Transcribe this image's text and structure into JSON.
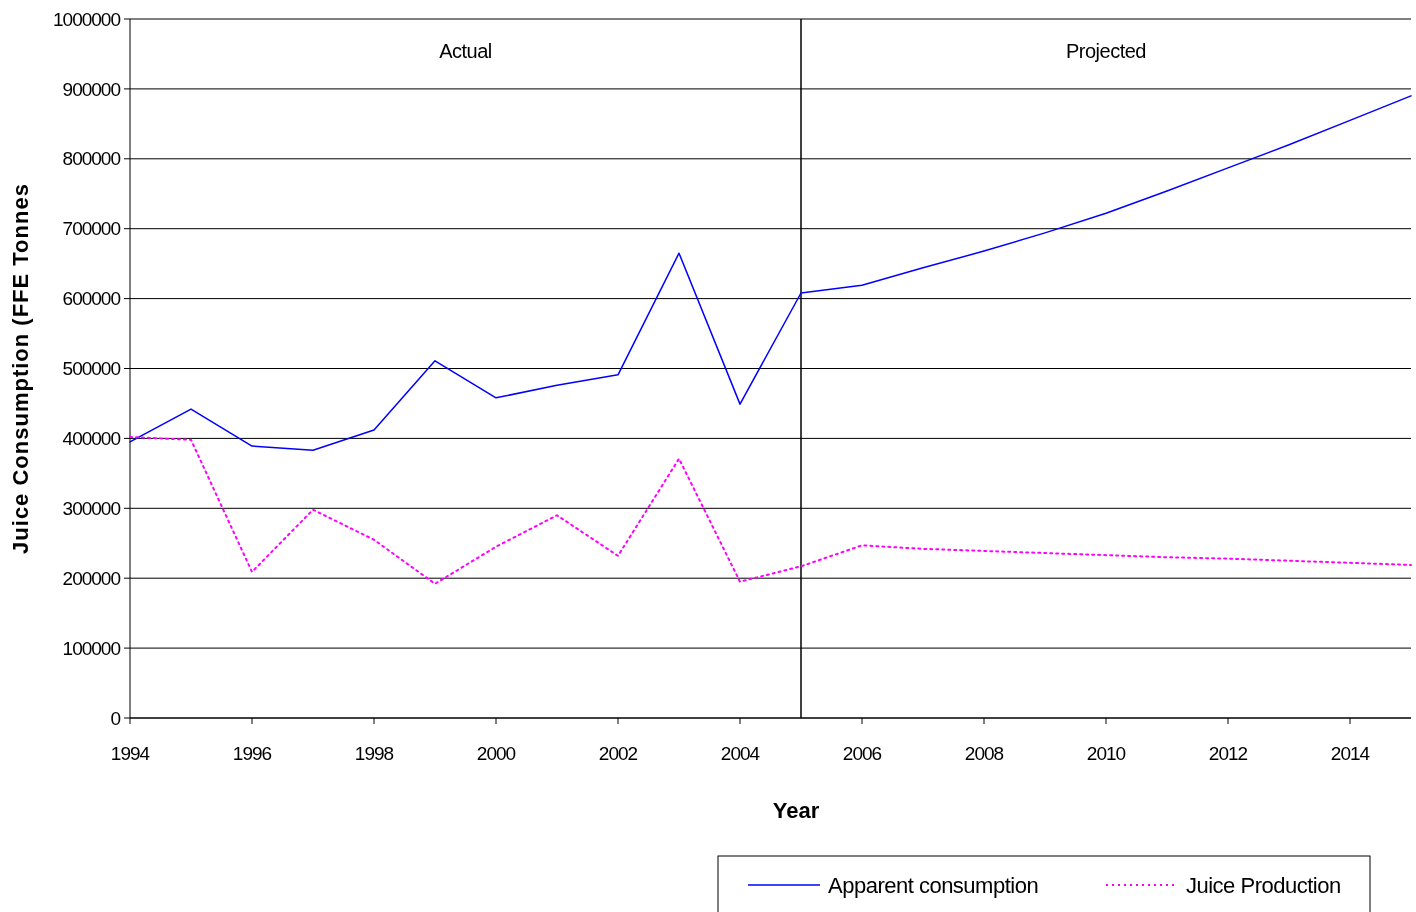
{
  "chart_data": {
    "type": "line",
    "xlabel": "Year",
    "ylabel": "Juice Consumption (FFE Tonnes",
    "x": [
      1994,
      1995,
      1996,
      1997,
      1998,
      1999,
      2000,
      2001,
      2002,
      2003,
      2004,
      2005,
      2006,
      2007,
      2008,
      2009,
      2010,
      2011,
      2012,
      2013,
      2014,
      2015
    ],
    "series": [
      {
        "name": "Apparent consumption",
        "color": "#0000ff",
        "line_style": "solid",
        "values": [
          395000,
          442000,
          389000,
          383000,
          412000,
          511000,
          458000,
          476000,
          491000,
          665000,
          449000,
          608000,
          619000,
          644000,
          668000,
          694000,
          722000,
          754000,
          787000,
          820000,
          855000,
          890000
        ]
      },
      {
        "name": "Juice Production",
        "color": "#ff00ff",
        "line_style": "dotted",
        "values": [
          402000,
          398000,
          209000,
          298000,
          255000,
          192000,
          245000,
          290000,
          232000,
          371000,
          195000,
          217000,
          247000,
          242000,
          239000,
          236000,
          233000,
          230000,
          228000,
          225000,
          222000,
          219000
        ]
      }
    ],
    "xlim": [
      1994,
      2015
    ],
    "xticks": [
      1994,
      1996,
      1998,
      2000,
      2002,
      2004,
      2006,
      2008,
      2010,
      2012,
      2014
    ],
    "ylim": [
      0,
      1000000
    ],
    "yticks": [
      0,
      100000,
      200000,
      300000,
      400000,
      500000,
      600000,
      700000,
      800000,
      900000,
      1000000
    ],
    "grid": "y",
    "legend": "bottom",
    "ref_lines": [
      {
        "axis": "x",
        "value": 2005,
        "color": "#000000"
      }
    ],
    "annotations": [
      "Actual",
      "Projected"
    ]
  }
}
